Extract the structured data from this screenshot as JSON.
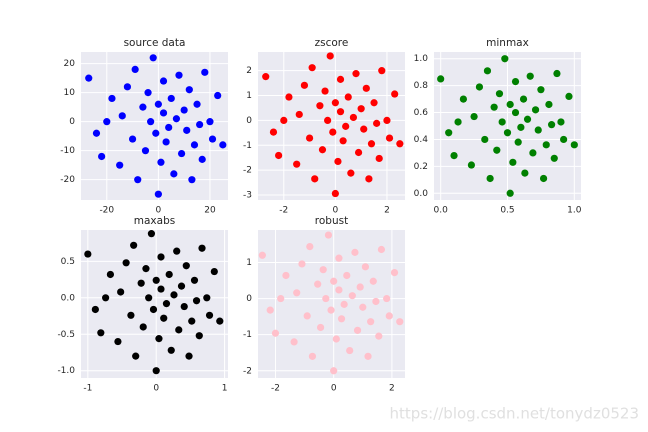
{
  "chart_data": [
    {
      "type": "scatter",
      "title": "source data",
      "color": "#0000ff",
      "grid": true,
      "xlim": [
        -30,
        27
      ],
      "ylim": [
        -27,
        24
      ],
      "xticks": [
        -20,
        0,
        20
      ],
      "yticks": [
        -20,
        -10,
        0,
        10,
        20
      ],
      "x": [
        -27,
        -22,
        -24,
        -18,
        -15,
        -14,
        -12,
        -10,
        -9,
        -8,
        -6,
        -5,
        -4,
        -3,
        -2,
        -1,
        0,
        0,
        1,
        2,
        2,
        3,
        4,
        5,
        6,
        7,
        8,
        9,
        10,
        11,
        12,
        13,
        14,
        15,
        17,
        18,
        20,
        21,
        23,
        25,
        -20,
        16
      ],
      "values": [
        15,
        -12,
        -4,
        8,
        -15,
        2,
        12,
        -6,
        18,
        -20,
        5,
        -10,
        10,
        0,
        22,
        -4,
        -25,
        6,
        -14,
        3,
        14,
        -7,
        -2,
        8,
        -18,
        1,
        16,
        -11,
        4,
        -3,
        11,
        -20,
        -8,
        6,
        -13,
        17,
        0,
        -6,
        9,
        -8,
        0,
        -1
      ]
    },
    {
      "type": "scatter",
      "title": "zscore",
      "color": "#ff0000",
      "grid": true,
      "xlim": [
        -3,
        2.7
      ],
      "ylim": [
        -3.2,
        2.75
      ],
      "xticks": [
        -2,
        0,
        2
      ],
      "yticks": [
        -3,
        -2,
        -1,
        0,
        1,
        2
      ],
      "x": [
        -2.7,
        -2.2,
        -2.4,
        -1.8,
        -1.5,
        -1.4,
        -1.2,
        -1.0,
        -0.9,
        -0.8,
        -0.6,
        -0.5,
        -0.4,
        -0.3,
        -0.2,
        -0.1,
        0,
        0,
        0.1,
        0.2,
        0.2,
        0.3,
        0.4,
        0.5,
        0.6,
        0.7,
        0.8,
        0.9,
        1.0,
        1.1,
        1.2,
        1.3,
        1.4,
        1.5,
        1.7,
        1.8,
        2.0,
        2.1,
        2.3,
        2.5,
        -2.0,
        1.6
      ],
      "values": [
        1.76,
        -1.41,
        -0.47,
        0.94,
        -1.76,
        0.24,
        1.41,
        -0.71,
        2.12,
        -2.35,
        0.59,
        -1.18,
        1.18,
        0,
        2.59,
        -0.47,
        -2.94,
        0.71,
        -1.65,
        0.35,
        1.65,
        -0.82,
        -0.24,
        0.94,
        -2.12,
        0.12,
        1.88,
        -1.29,
        0.47,
        -0.35,
        1.29,
        -2.35,
        -0.94,
        0.71,
        -1.53,
        2.0,
        0,
        -0.71,
        1.06,
        -0.94,
        0,
        -0.12
      ]
    },
    {
      "type": "scatter",
      "title": "minmax",
      "color": "#008000",
      "grid": true,
      "xlim": [
        -0.05,
        1.05
      ],
      "ylim": [
        -0.05,
        1.05
      ],
      "xticks": [
        {
          "value": 0,
          "label": "0.0"
        },
        0.5,
        {
          "value": 1,
          "label": "1.0"
        }
      ],
      "yticks": [
        {
          "value": 0,
          "label": "0.0"
        },
        0.2,
        0.4,
        0.6,
        0.8,
        {
          "value": 1,
          "label": "1.0"
        }
      ],
      "x": [
        0,
        0.1,
        0.06,
        0.17,
        0.23,
        0.25,
        0.29,
        0.33,
        0.35,
        0.37,
        0.4,
        0.42,
        0.44,
        0.46,
        0.48,
        0.5,
        0.52,
        0.52,
        0.54,
        0.56,
        0.56,
        0.58,
        0.6,
        0.62,
        0.63,
        0.65,
        0.67,
        0.69,
        0.71,
        0.73,
        0.75,
        0.77,
        0.79,
        0.81,
        0.85,
        0.87,
        0.9,
        0.92,
        0.96,
        1.0,
        0.13,
        0.83
      ],
      "values": [
        0.85,
        0.28,
        0.45,
        0.7,
        0.21,
        0.57,
        0.79,
        0.4,
        0.91,
        0.11,
        0.64,
        0.32,
        0.74,
        0.53,
        1.0,
        0.45,
        0,
        0.66,
        0.23,
        0.6,
        0.83,
        0.38,
        0.49,
        0.7,
        0.15,
        0.55,
        0.87,
        0.3,
        0.62,
        0.47,
        0.77,
        0.11,
        0.36,
        0.66,
        0.26,
        0.89,
        0.53,
        0.4,
        0.72,
        0.36,
        0.53,
        0.51
      ]
    },
    {
      "type": "scatter",
      "title": "maxabs",
      "color": "#000000",
      "grid": true,
      "xlim": [
        -1.1,
        1.05
      ],
      "ylim": [
        -1.1,
        0.93
      ],
      "xticks": [
        -1,
        0,
        1
      ],
      "yticks": [
        {
          "value": -1,
          "label": "-1.0"
        },
        -0.5,
        {
          "value": 0,
          "label": "0.0"
        },
        0.5
      ],
      "x": [
        -1,
        -0.81,
        -0.89,
        -0.67,
        -0.56,
        -0.52,
        -0.44,
        -0.37,
        -0.33,
        -0.3,
        -0.22,
        -0.19,
        -0.15,
        -0.11,
        -0.07,
        -0.04,
        0,
        0,
        0.04,
        0.07,
        0.07,
        0.11,
        0.15,
        0.19,
        0.22,
        0.26,
        0.3,
        0.33,
        0.37,
        0.41,
        0.44,
        0.48,
        0.52,
        0.56,
        0.63,
        0.67,
        0.74,
        0.78,
        0.85,
        0.93,
        -0.74,
        0.59
      ],
      "values": [
        0.6,
        -0.48,
        -0.16,
        0.32,
        -0.6,
        0.08,
        0.48,
        -0.24,
        0.72,
        -0.8,
        0.2,
        -0.4,
        0.4,
        0,
        0.88,
        -0.16,
        -1,
        0.24,
        -0.56,
        0.12,
        0.56,
        -0.28,
        -0.08,
        0.32,
        -0.72,
        0.04,
        0.64,
        -0.44,
        0.16,
        -0.12,
        0.44,
        -0.8,
        -0.32,
        0.24,
        -0.52,
        0.68,
        0,
        -0.24,
        0.36,
        -0.32,
        0,
        -0.04
      ]
    },
    {
      "type": "scatter",
      "title": "robust",
      "color": "#ffc0cb",
      "grid": true,
      "xlim": [
        -2.6,
        2.45
      ],
      "ylim": [
        -2.2,
        1.9
      ],
      "xticks": [
        -2,
        0,
        2
      ],
      "yticks": [
        -2,
        -1,
        0,
        1
      ],
      "x": [
        -2.45,
        -2.0,
        -2.18,
        -1.64,
        -1.36,
        -1.27,
        -1.09,
        -0.91,
        -0.82,
        -0.73,
        -0.55,
        -0.45,
        -0.36,
        -0.27,
        -0.18,
        -0.09,
        0,
        0,
        0.09,
        0.18,
        0.18,
        0.27,
        0.36,
        0.45,
        0.55,
        0.64,
        0.73,
        0.82,
        0.91,
        1.0,
        1.09,
        1.18,
        1.27,
        1.36,
        1.55,
        1.64,
        1.82,
        1.91,
        2.09,
        2.27,
        -1.82,
        1.45
      ],
      "values": [
        1.2,
        -0.96,
        -0.32,
        0.64,
        -1.2,
        0.16,
        0.96,
        -0.48,
        1.44,
        -1.6,
        0.4,
        -0.8,
        0.8,
        0,
        1.76,
        -0.32,
        -2.0,
        0.48,
        -1.12,
        0.24,
        1.12,
        -0.56,
        -0.16,
        0.64,
        -1.44,
        0.08,
        1.28,
        -0.88,
        0.32,
        -0.24,
        0.88,
        -1.6,
        -0.64,
        0.48,
        -1.04,
        1.36,
        0,
        -0.48,
        0.72,
        -0.64,
        0,
        -0.08
      ]
    }
  ],
  "watermark": "https://blog.csdn.net/tonydz0523"
}
